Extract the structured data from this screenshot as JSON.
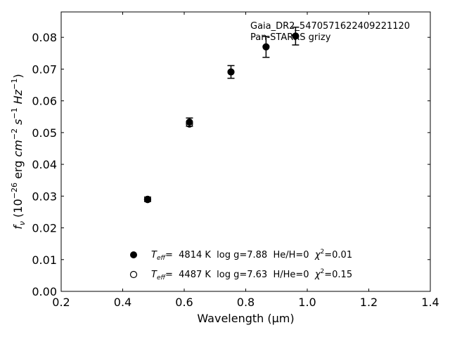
{
  "chart_data": {
    "type": "scatter",
    "annotation_lines": [
      "Gaia_DR2_5470571622409221120",
      "Pan-STARRS grizy"
    ],
    "xlabel": "Wavelength (μm)",
    "ylabel": {
      "pre": "f",
      "sub": "ν",
      "mid": " (10",
      "sup1": "−26",
      "mid2": " erg ",
      "cm": "cm",
      "sup2": "−2",
      "s": " s",
      "sup3": "−1",
      "hz": " Hz",
      "sup4": "−1",
      "post": ")"
    },
    "xlim": [
      0.2,
      1.4
    ],
    "ylim": [
      0.0,
      0.088
    ],
    "xticks": [
      0.2,
      0.4,
      0.6,
      0.8,
      1.0,
      1.2,
      1.4
    ],
    "xtick_labels": [
      "0.2",
      "0.4",
      "0.6",
      "0.8",
      "1.0",
      "1.2",
      "1.4"
    ],
    "yticks": [
      0.0,
      0.01,
      0.02,
      0.03,
      0.04,
      0.05,
      0.06,
      0.07,
      0.08
    ],
    "ytick_labels": [
      "0.00",
      "0.01",
      "0.02",
      "0.03",
      "0.04",
      "0.05",
      "0.06",
      "0.07",
      "0.08"
    ],
    "grid": false,
    "legend_position": "bottom-center",
    "series": [
      {
        "marker": "filled-circle",
        "color": "#000000",
        "legend_label": {
          "t": "T",
          "sub": "eff",
          "text": "=  4814 K  log g=7.88  He/H=0  ",
          "chi": "χ",
          "sup": "2",
          "end": "=0.01"
        },
        "points": [
          {
            "x": 0.481,
            "y": 0.029,
            "err": 0.0007
          },
          {
            "x": 0.617,
            "y": 0.0533,
            "err": 0.0013
          },
          {
            "x": 0.752,
            "y": 0.0691,
            "err": 0.002
          },
          {
            "x": 0.866,
            "y": 0.077,
            "err": 0.0033
          },
          {
            "x": 0.962,
            "y": 0.0804,
            "err": 0.0028
          }
        ]
      },
      {
        "marker": "open-circle",
        "color": "#000000",
        "legend_label": {
          "t": "T",
          "sub": "eff",
          "text": "=  4487 K  log g=7.63  H/He=0  ",
          "chi": "χ",
          "sup": "2",
          "end": "=0.15"
        },
        "points": [
          {
            "x": 0.481,
            "y": 0.0289
          },
          {
            "x": 0.617,
            "y": 0.0527
          }
        ]
      }
    ]
  }
}
